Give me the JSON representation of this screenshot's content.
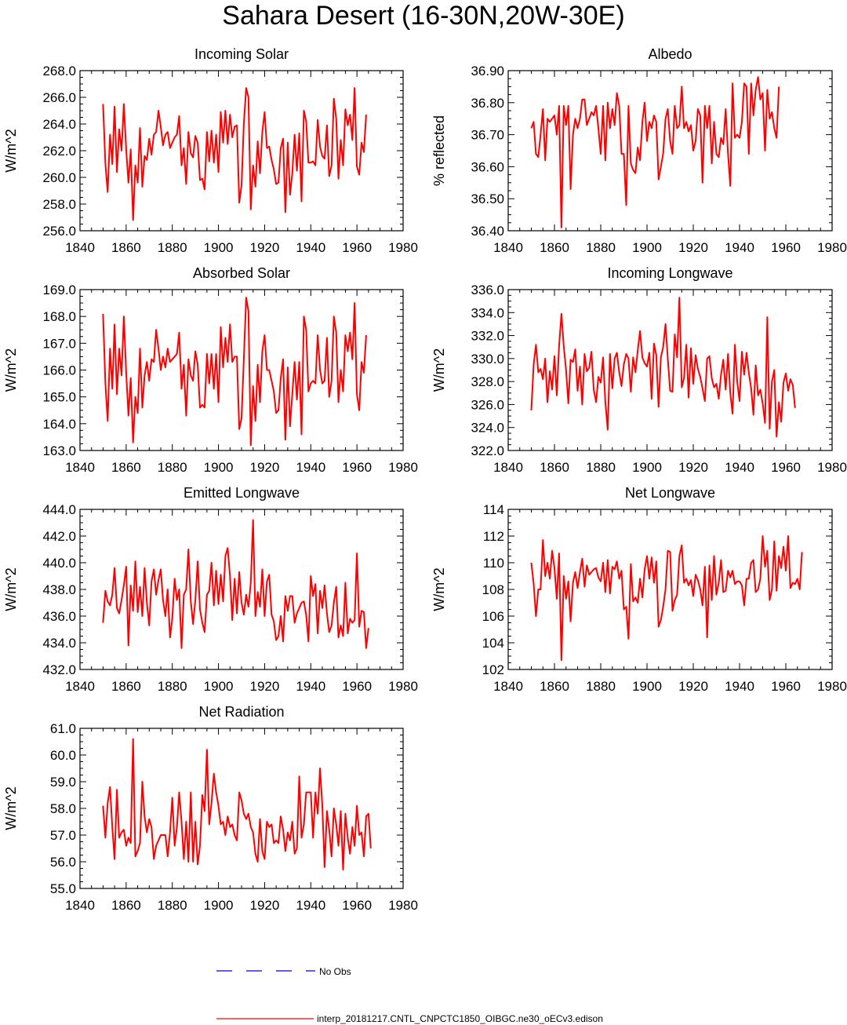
{
  "title": "Sahara Desert (16-30N,20W-30E)",
  "colors": {
    "model_line": "#ff0000",
    "obs_line": "#0000cc",
    "axis": "#000000"
  },
  "legend": {
    "obs_label": "No Obs",
    "model_label": "interp_20181217.CNTL_CNPCTC1850_OIBGC.ne30_oECv3.edison"
  },
  "chart_data": [
    {
      "type": "line",
      "title": "Incoming Solar",
      "ylabel": "W/m^2",
      "xlim": [
        1840,
        1980
      ],
      "ylim": [
        256.0,
        268.0
      ],
      "xticks": [
        1840,
        1860,
        1880,
        1900,
        1920,
        1940,
        1960,
        1980
      ],
      "yticks": [
        "256.0",
        "258.0",
        "260.0",
        "262.0",
        "264.0",
        "266.0",
        "268.0"
      ],
      "x_start": 1850,
      "series": [
        {
          "values": [
            265.5,
            261.0,
            258.9,
            263.2,
            261.0,
            265.3,
            260.4,
            263.6,
            262.0,
            265.5,
            262.1,
            259.6,
            262.1,
            256.8,
            260.9,
            259.6,
            263.7,
            259.3,
            261.6,
            261.3,
            262.9,
            261.7,
            263.2,
            263.4,
            265.0,
            263.8,
            262.4,
            263.2,
            263.4,
            262.2,
            262.6,
            263.0,
            263.2,
            264.6,
            260.9,
            262.2,
            259.5,
            263.4,
            261.8,
            261.5,
            263.1,
            262.6,
            259.8,
            259.9,
            259.1,
            263.4,
            261.2,
            263.5,
            261.1,
            263.2,
            260.4,
            264.9,
            262.6,
            265.0,
            262.5,
            264.7,
            263.0,
            263.8,
            263.9,
            258.1,
            259.4,
            264.0,
            266.7,
            266.0,
            257.6,
            260.9,
            259.3,
            262.7,
            260.3,
            263.4,
            264.9,
            262.2,
            262.3,
            261.3,
            260.6,
            259.5,
            259.6,
            262.2,
            262.9,
            257.4,
            262.6,
            258.7,
            260.3,
            263.2,
            260.5,
            263.3,
            258.2,
            265.0,
            264.2,
            261.1,
            261.1,
            261.2,
            260.9,
            264.3,
            262.3,
            261.6,
            261.4,
            263.9,
            260.1,
            260.9,
            265.9,
            264.4,
            259.9,
            262.8,
            260.9,
            265.1,
            263.9,
            264.7,
            262.8,
            266.7,
            260.8,
            260.2,
            262.6,
            261.9,
            264.7
          ]
        }
      ]
    },
    {
      "type": "line",
      "title": "Albedo",
      "ylabel": "% reflected",
      "xlim": [
        1840,
        1980
      ],
      "ylim": [
        36.4,
        36.9
      ],
      "xticks": [
        1840,
        1860,
        1880,
        1900,
        1920,
        1940,
        1960,
        1980
      ],
      "yticks": [
        "36.40",
        "36.50",
        "36.60",
        "36.70",
        "36.80",
        "36.90"
      ],
      "x_start": 1850,
      "series": [
        {
          "values": [
            36.72,
            36.74,
            36.64,
            36.63,
            36.7,
            36.78,
            36.62,
            36.75,
            36.74,
            36.75,
            36.76,
            36.7,
            36.79,
            36.41,
            36.79,
            36.73,
            36.79,
            36.53,
            36.7,
            36.75,
            36.72,
            36.75,
            36.81,
            36.81,
            36.73,
            36.75,
            36.77,
            36.76,
            36.79,
            36.72,
            36.64,
            36.79,
            36.62,
            36.8,
            36.72,
            36.78,
            36.73,
            36.83,
            36.79,
            36.64,
            36.64,
            36.48,
            36.79,
            36.61,
            36.59,
            36.58,
            36.66,
            36.62,
            36.74,
            36.8,
            36.68,
            36.74,
            36.72,
            36.76,
            36.74,
            36.56,
            36.6,
            36.64,
            36.75,
            36.78,
            36.68,
            36.64,
            36.79,
            36.72,
            36.73,
            36.85,
            36.72,
            36.74,
            36.71,
            36.73,
            36.65,
            36.68,
            36.78,
            36.76,
            36.55,
            36.79,
            36.72,
            36.79,
            36.61,
            36.74,
            36.64,
            36.63,
            36.69,
            36.67,
            36.78,
            36.64,
            36.54,
            36.86,
            36.69,
            36.7,
            36.69,
            36.74,
            36.86,
            36.85,
            36.64,
            36.86,
            36.76,
            36.84,
            36.88,
            36.81,
            36.83,
            36.65,
            36.84,
            36.75,
            36.77,
            36.72,
            36.69,
            36.85
          ]
        }
      ]
    },
    {
      "type": "line",
      "title": "Absorbed Solar",
      "ylabel": "W/m^2",
      "xlim": [
        1840,
        1980
      ],
      "ylim": [
        163.0,
        169.0
      ],
      "xticks": [
        1840,
        1860,
        1880,
        1900,
        1920,
        1940,
        1960,
        1980
      ],
      "yticks": [
        "163.0",
        "164.0",
        "165.0",
        "166.0",
        "167.0",
        "168.0",
        "169.0"
      ],
      "x_start": 1850,
      "series": [
        {
          "values": [
            168.1,
            165.5,
            164.1,
            166.8,
            165.3,
            167.7,
            165.1,
            166.8,
            165.8,
            168.0,
            165.9,
            164.3,
            165.7,
            163.3,
            165.0,
            164.4,
            166.8,
            164.6,
            165.8,
            166.3,
            165.6,
            166.4,
            166.3,
            167.5,
            166.8,
            166.0,
            166.5,
            166.1,
            166.8,
            166.3,
            166.4,
            166.5,
            166.6,
            167.4,
            165.3,
            166.2,
            164.3,
            166.4,
            165.8,
            165.6,
            166.7,
            166.2,
            164.6,
            164.7,
            164.6,
            166.6,
            165.5,
            166.6,
            165.3,
            166.6,
            164.8,
            167.6,
            166.1,
            167.2,
            166.3,
            167.7,
            166.3,
            166.5,
            166.5,
            163.8,
            164.2,
            166.4,
            168.7,
            168.2,
            163.2,
            165.4,
            164.1,
            166.2,
            164.8,
            166.7,
            167.3,
            166.0,
            166.0,
            165.6,
            165.2,
            164.4,
            164.5,
            165.7,
            166.4,
            163.4,
            166.1,
            163.9,
            165.1,
            166.3,
            164.9,
            166.3,
            163.6,
            168.0,
            167.5,
            165.2,
            165.5,
            165.6,
            165.5,
            167.3,
            166.0,
            165.5,
            165.6,
            167.2,
            165.0,
            165.6,
            168.0,
            167.4,
            164.8,
            166.0,
            165.2,
            167.3,
            166.7,
            167.4,
            166.4,
            168.5,
            165.1,
            164.5,
            166.3,
            165.9,
            167.3
          ]
        }
      ]
    },
    {
      "type": "line",
      "title": "Incoming Longwave",
      "ylabel": "W/m^2",
      "xlim": [
        1840,
        1980
      ],
      "ylim": [
        322.0,
        336.0
      ],
      "xticks": [
        1840,
        1860,
        1880,
        1900,
        1920,
        1940,
        1960,
        1980
      ],
      "yticks": [
        "322.0",
        "324.0",
        "326.0",
        "328.0",
        "330.0",
        "332.0",
        "334.0",
        "336.0"
      ],
      "x_start": 1850,
      "series": [
        {
          "values": [
            325.5,
            329.5,
            331.2,
            328.8,
            329.1,
            328.2,
            330.0,
            326.2,
            328.9,
            327.3,
            330.2,
            326.8,
            331.1,
            333.9,
            331.1,
            329.0,
            326.1,
            329.9,
            329.7,
            330.8,
            327.2,
            329.3,
            326.0,
            330.4,
            328.9,
            329.2,
            330.6,
            327.3,
            326.2,
            328.4,
            327.9,
            330.1,
            326.2,
            323.8,
            330.4,
            327.4,
            330.0,
            330.5,
            328.8,
            327.6,
            329.5,
            330.4,
            330.0,
            327.1,
            330.1,
            328.8,
            330.7,
            332.4,
            330.1,
            329.6,
            329.3,
            330.5,
            326.5,
            331.3,
            330.3,
            325.8,
            330.1,
            331.0,
            333.0,
            330.0,
            327.2,
            327.1,
            332.1,
            330.1,
            335.3,
            327.5,
            328.3,
            331.2,
            326.6,
            330.9,
            327.8,
            330.3,
            329.1,
            328.4,
            327.4,
            326.3,
            330.0,
            330.2,
            328.3,
            327.5,
            327.8,
            326.5,
            328.6,
            329.9,
            327.3,
            330.4,
            327.0,
            325.2,
            331.2,
            328.0,
            326.3,
            330.6,
            328.6,
            330.5,
            328.8,
            327.4,
            325.1,
            329.4,
            326.8,
            327.3,
            326.1,
            324.4,
            333.6,
            323.9,
            328.0,
            329.0,
            323.2,
            326.2,
            324.5,
            327.9,
            328.7,
            327.2,
            328.2,
            327.7,
            325.7
          ]
        }
      ]
    },
    {
      "type": "line",
      "title": "Emitted Longwave",
      "ylabel": "W/m^2",
      "xlim": [
        1840,
        1980
      ],
      "ylim": [
        432.0,
        444.0
      ],
      "xticks": [
        1840,
        1860,
        1880,
        1900,
        1920,
        1940,
        1960,
        1980
      ],
      "yticks": [
        "432.0",
        "434.0",
        "436.0",
        "438.0",
        "440.0",
        "442.0",
        "444.0"
      ],
      "x_start": 1850,
      "series": [
        {
          "values": [
            435.5,
            437.9,
            437.1,
            436.8,
            437.6,
            439.6,
            436.6,
            436.2,
            437.2,
            438.3,
            439.7,
            433.8,
            438.3,
            436.4,
            440.1,
            436.3,
            438.2,
            436.0,
            439.6,
            437.0,
            435.3,
            438.6,
            439.5,
            437.6,
            438.7,
            439.5,
            437.2,
            436.0,
            438.0,
            434.4,
            435.8,
            438.8,
            437.2,
            438.0,
            433.6,
            437.6,
            438.0,
            441.0,
            437.1,
            435.4,
            437.2,
            440.1,
            436.5,
            435.5,
            434.8,
            437.6,
            437.9,
            440.0,
            436.8,
            439.4,
            436.9,
            439.1,
            437.1,
            440.5,
            441.1,
            439.0,
            435.7,
            438.8,
            436.2,
            439.3,
            437.0,
            436.1,
            437.6,
            436.7,
            438.5,
            443.2,
            436.0,
            437.8,
            436.7,
            439.5,
            436.0,
            438.6,
            439.1,
            436.1,
            435.6,
            434.2,
            434.5,
            436.0,
            434.1,
            437.5,
            436.4,
            437.5,
            437.5,
            435.5,
            436.2,
            436.6,
            437.0,
            437.1,
            436.1,
            434.1,
            439.0,
            437.5,
            438.4,
            434.7,
            437.9,
            436.6,
            438.3,
            436.2,
            434.8,
            435.3,
            437.0,
            438.2,
            434.4,
            435.3,
            434.5,
            438.5,
            434.7,
            435.8,
            435.5,
            435.7,
            440.7,
            435.2,
            436.4,
            436.3,
            433.6,
            435.1
          ]
        }
      ]
    },
    {
      "type": "line",
      "title": "Net Longwave",
      "ylabel": "W/m^2",
      "xlim": [
        1840,
        1980
      ],
      "ylim": [
        102,
        114
      ],
      "xticks": [
        1840,
        1860,
        1880,
        1900,
        1920,
        1940,
        1960,
        1980
      ],
      "yticks": [
        "102",
        "104",
        "106",
        "108",
        "110",
        "112",
        "114"
      ],
      "x_start": 1850,
      "series": [
        {
          "values": [
            110.0,
            108.4,
            106.0,
            108.0,
            108.0,
            111.7,
            109.0,
            110.0,
            108.8,
            110.9,
            109.6,
            107.3,
            110.7,
            102.7,
            109.0,
            107.3,
            108.6,
            105.6,
            108.5,
            109.3,
            108.1,
            109.3,
            110.3,
            108.2,
            109.8,
            109.1,
            109.3,
            109.5,
            109.6,
            108.9,
            108.6,
            110.0,
            107.8,
            110.2,
            107.7,
            109.7,
            109.5,
            110.1,
            108.8,
            109.4,
            106.5,
            106.7,
            104.3,
            109.9,
            107.1,
            107.4,
            107.0,
            108.8,
            107.4,
            109.5,
            110.5,
            108.8,
            110.4,
            108.5,
            110.1,
            105.2,
            105.7,
            106.7,
            108.0,
            110.9,
            110.8,
            106.4,
            107.2,
            107.6,
            110.5,
            111.3,
            108.5,
            108.8,
            108.3,
            108.7,
            107.5,
            109.1,
            108.7,
            108.0,
            106.8,
            109.7,
            104.4,
            109.8,
            107.2,
            110.5,
            107.6,
            108.5,
            110.2,
            107.8,
            107.9,
            109.4,
            108.9,
            109.4,
            108.4,
            108.6,
            108.6,
            108.3,
            106.8,
            108.8,
            108.8,
            110.0,
            110.2,
            107.8,
            108.0,
            108.8,
            112.0,
            109.7,
            110.9,
            107.2,
            108.0,
            111.6,
            107.9,
            110.5,
            109.6,
            111.2,
            109.4,
            112.0,
            108.1,
            108.5,
            108.4,
            108.8,
            108.0,
            110.8
          ]
        }
      ]
    },
    {
      "type": "line",
      "title": "Net Radiation",
      "ylabel": "W/m^2",
      "xlim": [
        1840,
        1980
      ],
      "ylim": [
        55.0,
        61.0
      ],
      "xticks": [
        1840,
        1860,
        1880,
        1900,
        1920,
        1940,
        1960,
        1980
      ],
      "yticks": [
        "55.0",
        "56.0",
        "57.0",
        "58.0",
        "59.0",
        "60.0",
        "61.0"
      ],
      "x_start": 1850,
      "series": [
        {
          "values": [
            58.1,
            56.9,
            58.2,
            58.8,
            57.3,
            56.1,
            58.7,
            56.9,
            57.1,
            57.2,
            56.6,
            56.9,
            56.7,
            60.6,
            56.2,
            56.4,
            56.7,
            59.0,
            57.7,
            57.1,
            57.6,
            57.3,
            56.1,
            56.6,
            56.8,
            57.0,
            57.0,
            57.0,
            56.2,
            57.1,
            58.4,
            56.6,
            57.3,
            58.6,
            57.5,
            56.1,
            57.5,
            56.0,
            58.6,
            56.0,
            57.5,
            55.9,
            56.6,
            58.5,
            57.9,
            60.2,
            57.4,
            58.2,
            59.3,
            58.6,
            58.1,
            57.4,
            57.5,
            57.0,
            57.7,
            57.3,
            57.4,
            57.0,
            56.8,
            58.6,
            58.3,
            57.8,
            57.6,
            57.8,
            57.3,
            57.1,
            56.3,
            56.0,
            57.6,
            56.4,
            56.1,
            57.5,
            57.3,
            57.4,
            56.7,
            56.8,
            56.7,
            57.7,
            57.2,
            56.4,
            57.1,
            56.8,
            57.5,
            56.3,
            56.5,
            59.2,
            56.9,
            57.4,
            58.6,
            58.6,
            58.6,
            56.9,
            58.6,
            57.8,
            59.5,
            58.1,
            55.8,
            57.9,
            57.2,
            56.2,
            58.0,
            57.4,
            56.6,
            57.9,
            55.7,
            57.8,
            56.9,
            56.3,
            57.3,
            56.6,
            58.1,
            57.0,
            57.1,
            56.2,
            57.7,
            57.8,
            56.5
          ]
        }
      ]
    }
  ]
}
